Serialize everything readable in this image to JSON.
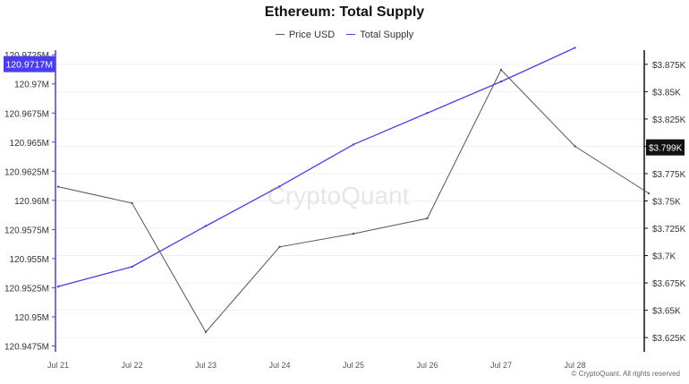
{
  "chart_data": {
    "type": "line",
    "title": "Ethereum: Total Supply",
    "categories": [
      "Jul 21",
      "Jul 22",
      "Jul 23",
      "Jul 24",
      "Jul 25",
      "Jul 26",
      "Jul 27",
      "Jul 28"
    ],
    "series": [
      {
        "name": "Price USD",
        "color": "#555555",
        "axis": "right",
        "x": [
          0,
          1,
          2,
          3,
          4,
          5,
          6,
          7,
          8
        ],
        "values": [
          3763,
          3748,
          3630,
          3708,
          3720,
          3734,
          3870,
          3800,
          3757
        ]
      },
      {
        "name": "Total Supply",
        "color": "#4a3df0",
        "axis": "left",
        "x": [
          0,
          1,
          2,
          3,
          4,
          5,
          6,
          7
        ],
        "values": [
          120.9526,
          120.9543,
          120.9578,
          120.9612,
          120.9648,
          120.9675,
          120.9702,
          120.9731
        ]
      }
    ],
    "left_axis": {
      "ylim": [
        120.947,
        120.9729
      ],
      "ticks": [
        120.9475,
        120.95,
        120.9525,
        120.955,
        120.9575,
        120.96,
        120.9625,
        120.965,
        120.9675,
        120.97,
        120.9725
      ],
      "tick_labels": [
        "120.9475M",
        "120.95M",
        "120.9525M",
        "120.955M",
        "120.9575M",
        "120.96M",
        "120.9625M",
        "120.965M",
        "120.9675M",
        "120.97M",
        "120.9725M"
      ],
      "highlight_label": "120.9717M",
      "highlight_value": 120.9717,
      "highlight_color": "#4a3df0"
    },
    "right_axis": {
      "ylim": [
        3612,
        3888
      ],
      "ticks": [
        3625,
        3650,
        3675,
        3700,
        3725,
        3750,
        3775,
        3800,
        3825,
        3850,
        3875
      ],
      "tick_labels": [
        "$3.625K",
        "$3.65K",
        "$3.675K",
        "$3.7K",
        "$3.725K",
        "$3.75K",
        "$3.775K",
        "$3.8K",
        "$3.825K",
        "$3.85K",
        "$3.875K"
      ],
      "highlight_label": "$3.799K",
      "highlight_value": 3799,
      "highlight_color": "#111111"
    },
    "grid": true,
    "legend_position": "top-center",
    "watermark": "CryptoQuant",
    "footer": "© CryptoQuant. All rights reserved"
  }
}
